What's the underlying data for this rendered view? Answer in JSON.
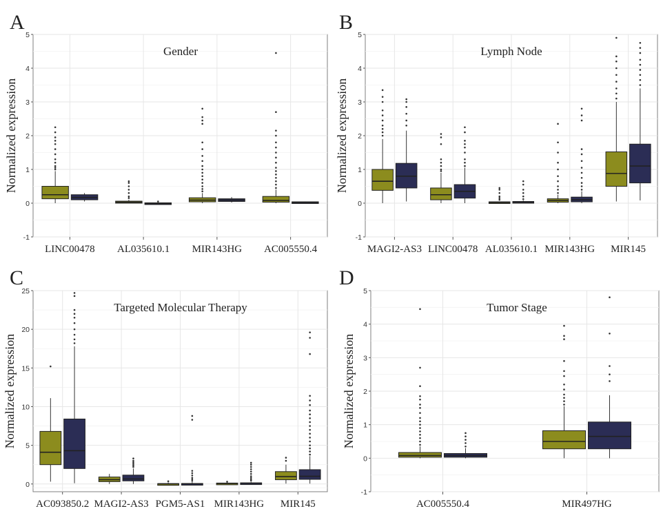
{
  "colors": {
    "group_a": "#8c8c1e",
    "group_b": "#2b2d55"
  },
  "chart_data": [
    {
      "panel": "A",
      "type": "box",
      "title": "Gender",
      "ylabel": "Normalized expression",
      "ylim": [
        -1,
        5
      ],
      "yticks": [
        -1,
        0,
        1,
        2,
        3,
        4,
        5
      ],
      "categories": [
        "LINC00478",
        "AL035610.1",
        "MIR143HG",
        "AC005550.4"
      ],
      "series": [
        {
          "color": "#8c8c1e",
          "boxes": [
            {
              "q1": 0.13,
              "median": 0.25,
              "q3": 0.5,
              "whislo": 0.0,
              "whishi": 0.95,
              "outliers": [
                1.0,
                1.05,
                1.1,
                1.2,
                1.3,
                1.45,
                1.6,
                1.75,
                1.85,
                1.95,
                2.1,
                2.25
              ]
            },
            {
              "q1": 0.0,
              "median": 0.03,
              "q3": 0.06,
              "whislo": 0.0,
              "whishi": 0.1,
              "outliers": [
                0.15,
                0.2,
                0.3,
                0.4,
                0.5,
                0.6,
                0.65
              ]
            },
            {
              "q1": 0.04,
              "median": 0.09,
              "q3": 0.16,
              "whislo": 0.0,
              "whishi": 0.3,
              "outliers": [
                0.35,
                0.42,
                0.5,
                0.6,
                0.7,
                0.8,
                0.9,
                1.0,
                1.1,
                1.25,
                1.4,
                1.6,
                1.8,
                2.35,
                2.45,
                2.55,
                2.8
              ]
            },
            {
              "q1": 0.03,
              "median": 0.08,
              "q3": 0.2,
              "whislo": 0.0,
              "whishi": 0.4,
              "outliers": [
                0.45,
                0.55,
                0.65,
                0.75,
                0.85,
                0.95,
                1.05,
                1.2,
                1.35,
                1.5,
                1.65,
                1.8,
                2.0,
                2.15,
                2.7,
                4.45
              ]
            }
          ]
        },
        {
          "color": "#2b2d55",
          "boxes": [
            {
              "q1": 0.1,
              "median": 0.17,
              "q3": 0.25,
              "whislo": 0.05,
              "whishi": 0.3,
              "outliers": []
            },
            {
              "q1": -0.02,
              "median": -0.01,
              "q3": 0.01,
              "whislo": -0.03,
              "whishi": 0.03,
              "outliers": [
                0.05
              ]
            },
            {
              "q1": 0.05,
              "median": 0.09,
              "q3": 0.13,
              "whislo": 0.02,
              "whishi": 0.18,
              "outliers": []
            },
            {
              "q1": 0.0,
              "median": 0.02,
              "q3": 0.04,
              "whislo": -0.01,
              "whishi": 0.05,
              "outliers": []
            }
          ]
        }
      ]
    },
    {
      "panel": "B",
      "type": "box",
      "title": "Lymph Node",
      "ylabel": "Normalized expression",
      "ylim": [
        -1,
        5
      ],
      "yticks": [
        -1,
        0,
        1,
        2,
        3,
        4,
        5
      ],
      "categories": [
        "MAGI2-AS3",
        "LINC00478",
        "AL035610.1",
        "MIR143HG",
        "MIR145"
      ],
      "series": [
        {
          "color": "#8c8c1e",
          "boxes": [
            {
              "q1": 0.38,
              "median": 0.65,
              "q3": 1.0,
              "whislo": 0.0,
              "whishi": 1.9,
              "outliers": [
                2.0,
                2.1,
                2.2,
                2.3,
                2.45,
                2.6,
                2.75,
                3.0,
                3.15,
                3.35
              ]
            },
            {
              "q1": 0.1,
              "median": 0.25,
              "q3": 0.45,
              "whislo": 0.0,
              "whishi": 0.9,
              "outliers": [
                0.95,
                1.0,
                1.1,
                1.2,
                1.3,
                1.75,
                1.95,
                2.05
              ]
            },
            {
              "q1": 0.0,
              "median": 0.02,
              "q3": 0.04,
              "whislo": 0.0,
              "whishi": 0.05,
              "outliers": [
                0.1,
                0.15,
                0.2,
                0.3,
                0.4,
                0.45
              ]
            },
            {
              "q1": 0.03,
              "median": 0.08,
              "q3": 0.13,
              "whislo": 0.0,
              "whishi": 0.25,
              "outliers": [
                0.3,
                0.4,
                0.5,
                0.65,
                0.8,
                1.0,
                1.2,
                1.5,
                1.8,
                2.35
              ]
            },
            {
              "q1": 0.5,
              "median": 0.88,
              "q3": 1.52,
              "whislo": 0.05,
              "whishi": 3.0,
              "outliers": [
                3.1,
                3.25,
                3.4,
                3.6,
                3.8,
                4.0,
                4.2,
                4.35,
                4.9
              ]
            }
          ]
        },
        {
          "color": "#2b2d55",
          "boxes": [
            {
              "q1": 0.45,
              "median": 0.8,
              "q3": 1.18,
              "whislo": 0.05,
              "whishi": 2.15,
              "outliers": [
                2.3,
                2.45,
                2.65,
                2.85,
                3.0,
                3.08
              ]
            },
            {
              "q1": 0.15,
              "median": 0.35,
              "q3": 0.55,
              "whislo": 0.0,
              "whishi": 1.05,
              "outliers": [
                1.1,
                1.2,
                1.3,
                1.5,
                1.65,
                1.75,
                1.85,
                2.1,
                2.25
              ]
            },
            {
              "q1": 0.0,
              "median": 0.02,
              "q3": 0.05,
              "whislo": 0.0,
              "whishi": 0.08,
              "outliers": [
                0.12,
                0.2,
                0.3,
                0.4,
                0.55,
                0.65
              ]
            },
            {
              "q1": 0.04,
              "median": 0.1,
              "q3": 0.18,
              "whislo": 0.0,
              "whishi": 0.35,
              "outliers": [
                0.4,
                0.5,
                0.6,
                0.75,
                0.9,
                1.05,
                1.25,
                1.45,
                1.6,
                2.45,
                2.6,
                2.8
              ]
            },
            {
              "q1": 0.6,
              "median": 1.1,
              "q3": 1.75,
              "whislo": 0.08,
              "whishi": 3.4,
              "outliers": [
                3.5,
                3.65,
                3.8,
                3.95,
                4.1,
                4.25,
                4.45,
                4.6,
                4.75
              ]
            }
          ]
        }
      ]
    },
    {
      "panel": "C",
      "type": "box",
      "title": "Targeted Molecular Therapy",
      "ylabel": "Normalized expression",
      "ylim": [
        -1,
        25
      ],
      "yticks": [
        0,
        5,
        10,
        15,
        20,
        25
      ],
      "categories": [
        "AC093850.2",
        "MAGI2-AS3",
        "PGM5-AS1",
        "MIR143HG",
        "MIR145"
      ],
      "series": [
        {
          "color": "#8c8c1e",
          "boxes": [
            {
              "q1": 2.5,
              "median": 4.1,
              "q3": 6.8,
              "whislo": 0.3,
              "whishi": 11.1,
              "outliers": [
                15.2
              ]
            },
            {
              "q1": 0.3,
              "median": 0.55,
              "q3": 0.9,
              "whislo": 0.0,
              "whishi": 1.3,
              "outliers": []
            },
            {
              "q1": 0.0,
              "median": 0.02,
              "q3": 0.05,
              "whislo": 0.0,
              "whishi": 0.2,
              "outliers": [
                0.35
              ]
            },
            {
              "q1": 0.03,
              "median": 0.07,
              "q3": 0.12,
              "whislo": 0.0,
              "whishi": 0.2,
              "outliers": [
                0.3
              ]
            },
            {
              "q1": 0.55,
              "median": 0.95,
              "q3": 1.6,
              "whislo": 0.05,
              "whishi": 2.5,
              "outliers": [
                3.0,
                3.4
              ]
            }
          ]
        },
        {
          "color": "#2b2d55",
          "boxes": [
            {
              "q1": 2.0,
              "median": 4.3,
              "q3": 8.4,
              "whislo": 0.1,
              "whishi": 17.8,
              "outliers": [
                18.2,
                18.7,
                19.3,
                20.0,
                20.8,
                21.5,
                22.0,
                22.5,
                24.3,
                24.7
              ]
            },
            {
              "q1": 0.4,
              "median": 0.65,
              "q3": 1.15,
              "whislo": 0.0,
              "whishi": 2.0,
              "outliers": [
                2.2,
                2.4,
                2.6,
                2.8,
                3.0,
                3.3
              ]
            },
            {
              "q1": 0.0,
              "median": 0.03,
              "q3": 0.07,
              "whislo": 0.0,
              "whishi": 0.25,
              "outliers": [
                0.4,
                0.6,
                0.8,
                1.1,
                1.4,
                1.7,
                8.3,
                8.8
              ]
            },
            {
              "q1": 0.03,
              "median": 0.09,
              "q3": 0.15,
              "whislo": 0.0,
              "whishi": 0.3,
              "outliers": [
                0.45,
                0.6,
                0.8,
                1.0,
                1.3,
                1.6,
                1.9,
                2.2,
                2.5,
                2.75
              ]
            },
            {
              "q1": 0.6,
              "median": 1.0,
              "q3": 1.85,
              "whislo": 0.05,
              "whishi": 3.6,
              "outliers": [
                3.8,
                4.2,
                4.6,
                5.0,
                5.5,
                6.0,
                6.5,
                7.0,
                7.5,
                8.0,
                8.5,
                9.0,
                9.5,
                10.2,
                10.8,
                11.4,
                16.8,
                18.9,
                19.6
              ]
            }
          ]
        }
      ]
    },
    {
      "panel": "D",
      "type": "box",
      "title": "Tumor Stage",
      "ylabel": "Normalized expression",
      "ylim": [
        -1,
        5
      ],
      "yticks": [
        -1,
        0,
        1,
        2,
        3,
        4,
        5
      ],
      "categories": [
        "AC005550.4",
        "MIR497HG"
      ],
      "series": [
        {
          "color": "#8c8c1e",
          "boxes": [
            {
              "q1": 0.03,
              "median": 0.08,
              "q3": 0.17,
              "whislo": 0.0,
              "whishi": 0.35,
              "outliers": [
                0.4,
                0.5,
                0.6,
                0.7,
                0.8,
                0.9,
                1.0,
                1.1,
                1.2,
                1.35,
                1.5,
                1.6,
                1.75,
                1.85,
                2.15,
                2.7,
                4.45
              ]
            },
            {
              "q1": 0.28,
              "median": 0.5,
              "q3": 0.82,
              "whislo": 0.0,
              "whishi": 1.55,
              "outliers": [
                1.6,
                1.7,
                1.8,
                1.9,
                2.05,
                2.2,
                2.45,
                2.6,
                2.9,
                3.55,
                3.65,
                3.95
              ]
            }
          ]
        },
        {
          "color": "#2b2d55",
          "boxes": [
            {
              "q1": 0.03,
              "median": 0.08,
              "q3": 0.14,
              "whislo": 0.0,
              "whishi": 0.3,
              "outliers": [
                0.35,
                0.45,
                0.55,
                0.65,
                0.75
              ]
            },
            {
              "q1": 0.28,
              "median": 0.65,
              "q3": 1.08,
              "whislo": 0.0,
              "whishi": 1.88,
              "outliers": [
                2.3,
                2.5,
                2.75,
                3.72,
                4.8
              ]
            }
          ]
        }
      ]
    }
  ]
}
